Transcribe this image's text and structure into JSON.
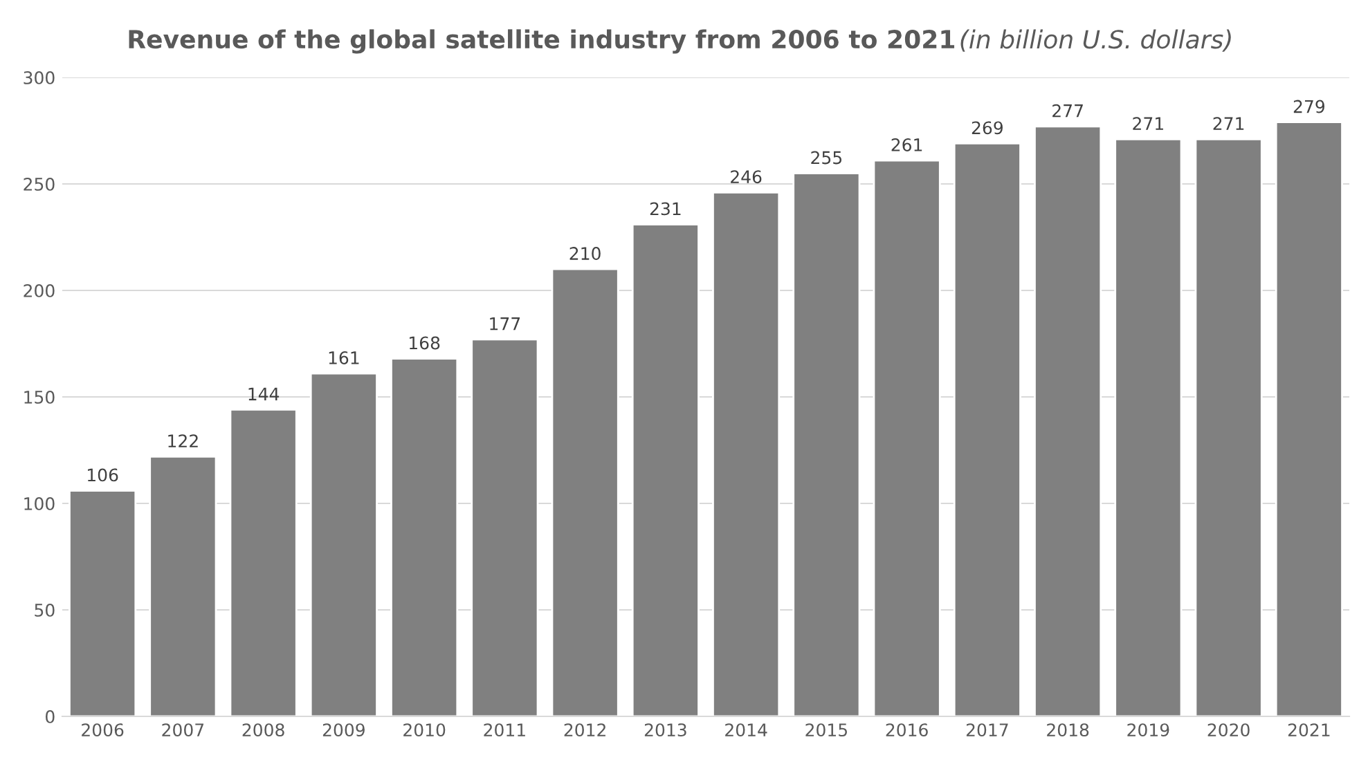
{
  "chart_data": {
    "type": "bar",
    "title": "Revenue of the global satellite industry from 2006 to 2021",
    "subtitle": "(in billion U.S. dollars)",
    "categories": [
      "2006",
      "2007",
      "2008",
      "2009",
      "2010",
      "2011",
      "2012",
      "2013",
      "2014",
      "2015",
      "2016",
      "2017",
      "2018",
      "2019",
      "2020",
      "2021"
    ],
    "values": [
      106,
      122,
      144,
      161,
      168,
      177,
      210,
      231,
      246,
      255,
      261,
      269,
      277,
      271,
      271,
      279
    ],
    "color": "#808080",
    "ylim": [
      0,
      300
    ],
    "yticks": [
      0,
      50,
      100,
      150,
      200,
      250,
      300
    ],
    "grid": "y",
    "data_labels": true
  }
}
